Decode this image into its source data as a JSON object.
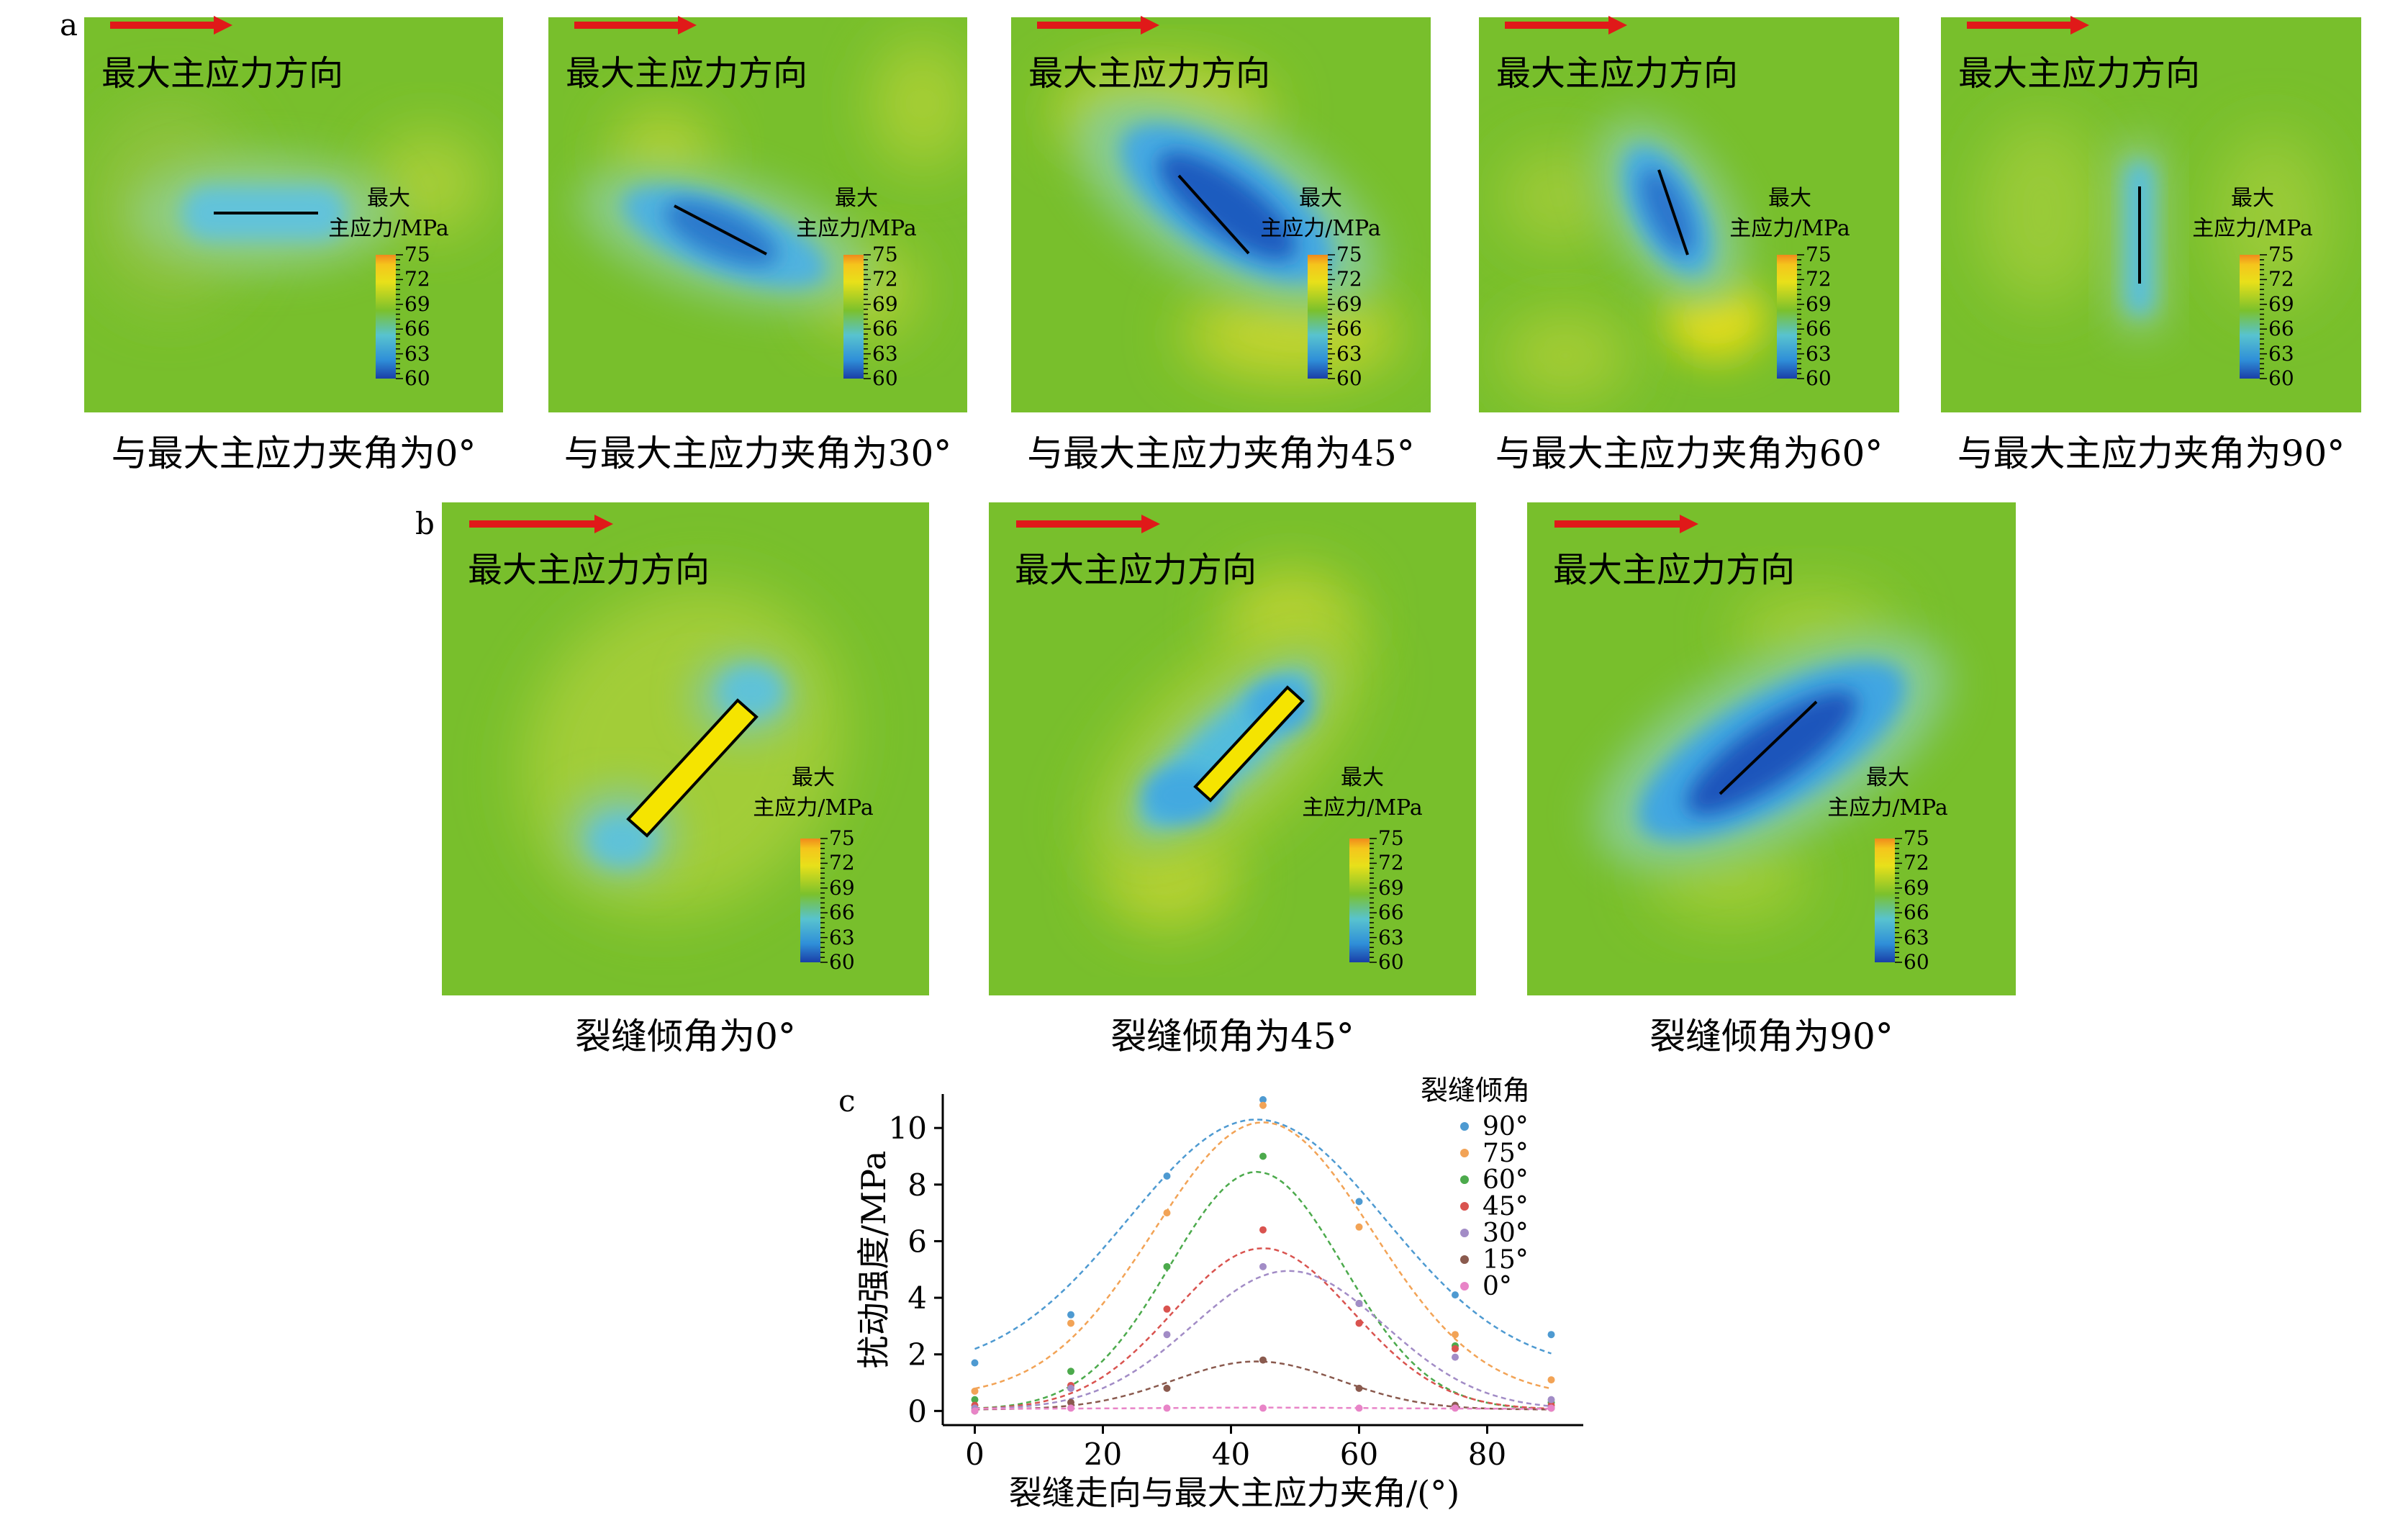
{
  "panels": {
    "a": "a",
    "b": "b",
    "c": "c"
  },
  "direction_label": "最大主应力方向",
  "colorbar": {
    "title_line1": "最大",
    "title_line2": "主应力/MPa",
    "ticks": [
      "75",
      "72",
      "69",
      "66",
      "63",
      "60"
    ]
  },
  "row_a_captions": [
    "与最大主应力夹角为0°",
    "与最大主应力夹角为30°",
    "与最大主应力夹角为45°",
    "与最大主应力夹角为60°",
    "与最大主应力夹角为90°"
  ],
  "row_b_captions": [
    "裂缝倾角为0°",
    "裂缝倾角为45°",
    "裂缝倾角为90°"
  ],
  "colors": {
    "background_green": "#76bd2b",
    "low_blue": "#1f55b8",
    "mid_cyan": "#56c1d8",
    "high_yellow": "#e2dc14",
    "arrow_red": "#e01919",
    "fracture_fill": "#f5e400"
  },
  "chart_data": {
    "type": "scatter",
    "xlabel": "裂缝走向与最大主应力夹角/(°)",
    "ylabel": "扰动强度/MPa",
    "legend_title": "裂缝倾角",
    "legend_placement": "top-right",
    "xlim": [
      -5,
      95
    ],
    "ylim": [
      -0.5,
      11.2
    ],
    "x_ticks": [
      0,
      20,
      40,
      60,
      80
    ],
    "y_ticks": [
      0,
      2,
      4,
      6,
      8,
      10
    ],
    "x": [
      0,
      15,
      30,
      45,
      60,
      75,
      90
    ],
    "series": [
      {
        "name": "90°",
        "color": "#4e9ad1",
        "values": [
          1.7,
          3.4,
          8.3,
          11.0,
          7.4,
          4.1,
          2.7
        ],
        "fit": {
          "amplitude": 8.9,
          "center": 44,
          "sigma": 20,
          "baseline": 1.4
        }
      },
      {
        "name": "75°",
        "color": "#f2a356",
        "values": [
          0.7,
          3.1,
          7.0,
          10.8,
          6.5,
          2.7,
          1.1
        ],
        "fit": {
          "amplitude": 9.7,
          "center": 45,
          "sigma": 17,
          "baseline": 0.5
        }
      },
      {
        "name": "60°",
        "color": "#4caa4c",
        "values": [
          0.4,
          1.4,
          5.1,
          9.0,
          3.8,
          2.3,
          0.3
        ],
        "fit": {
          "amplitude": 8.4,
          "center": 44,
          "sigma": 13.5,
          "baseline": 0.05
        }
      },
      {
        "name": "45°",
        "color": "#d9534f",
        "values": [
          0.2,
          0.9,
          3.6,
          6.4,
          3.1,
          2.2,
          0.2
        ],
        "fit": {
          "amplitude": 5.7,
          "center": 45,
          "sigma": 14,
          "baseline": 0.05
        }
      },
      {
        "name": "30°",
        "color": "#a28cc6",
        "values": [
          0.1,
          0.8,
          2.7,
          5.1,
          3.8,
          1.9,
          0.4
        ],
        "fit": {
          "amplitude": 4.9,
          "center": 49,
          "sigma": 15,
          "baseline": 0.05
        }
      },
      {
        "name": "15°",
        "color": "#8a5a4e",
        "values": [
          0.0,
          0.3,
          0.8,
          1.8,
          0.8,
          0.2,
          0.1
        ],
        "fit": {
          "amplitude": 1.7,
          "center": 44,
          "sigma": 13,
          "baseline": 0.05
        }
      },
      {
        "name": "0°",
        "color": "#e884c7",
        "values": [
          0.0,
          0.1,
          0.1,
          0.1,
          0.1,
          0.1,
          0.1
        ],
        "fit": {
          "amplitude": 0.04,
          "center": 45,
          "sigma": 15,
          "baseline": 0.08
        }
      }
    ]
  }
}
